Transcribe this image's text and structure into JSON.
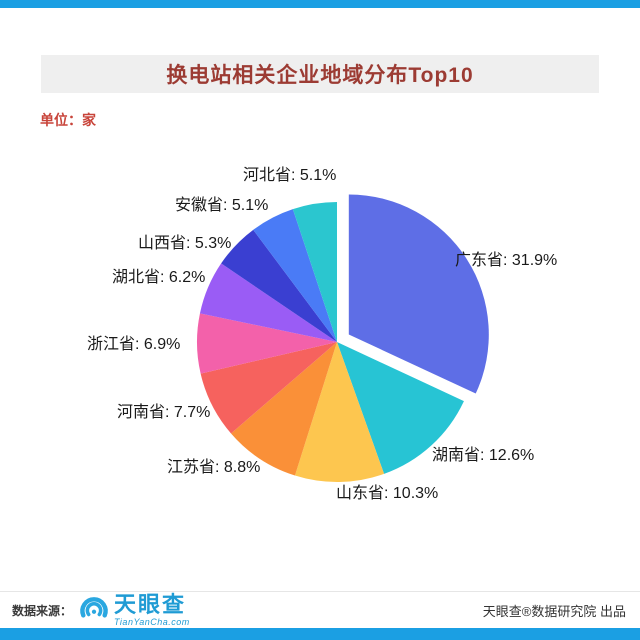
{
  "page": {
    "title": "换电站相关企业地域分布Top10",
    "unit_label": "单位：家",
    "footer": {
      "source_label": "数据来源：",
      "logo_text": "天眼查",
      "logo_subtext": "TianYanCha.com",
      "credit": "天眼查®数据研究院 出品"
    }
  },
  "colors": {
    "accent_bar": "#1b9fe3",
    "banner_bg": "#efefef",
    "title_color": "#9c3b33",
    "unit_color": "#c8443a",
    "logo_blue": "#1f9bd4"
  },
  "chart_data": {
    "type": "pie",
    "title": "换电站相关企业地域分布Top10",
    "unit": "家",
    "start_angle_deg": 0,
    "direction": "clockwise",
    "legend_position": "labels-around",
    "slices": [
      {
        "label": "广东省",
        "value": 31.9,
        "color": "#5e6ee6",
        "exploded": true
      },
      {
        "label": "湖南省",
        "value": 12.6,
        "color": "#27c4d4",
        "exploded": false
      },
      {
        "label": "山东省",
        "value": 10.3,
        "color": "#fdc64f",
        "exploded": false
      },
      {
        "label": "江苏省",
        "value": 8.8,
        "color": "#fa9038",
        "exploded": false
      },
      {
        "label": "河南省",
        "value": 7.7,
        "color": "#f6625e",
        "exploded": false
      },
      {
        "label": "浙江省",
        "value": 6.9,
        "color": "#f361aa",
        "exploded": false
      },
      {
        "label": "湖北省",
        "value": 6.2,
        "color": "#9a5cf5",
        "exploded": false
      },
      {
        "label": "山西省",
        "value": 5.3,
        "color": "#3a3fd1",
        "exploded": false
      },
      {
        "label": "安徽省",
        "value": 5.1,
        "color": "#4a7bf6",
        "exploded": false
      },
      {
        "label": "河北省",
        "value": 5.1,
        "color": "#2bc6cf",
        "exploded": false
      }
    ]
  }
}
